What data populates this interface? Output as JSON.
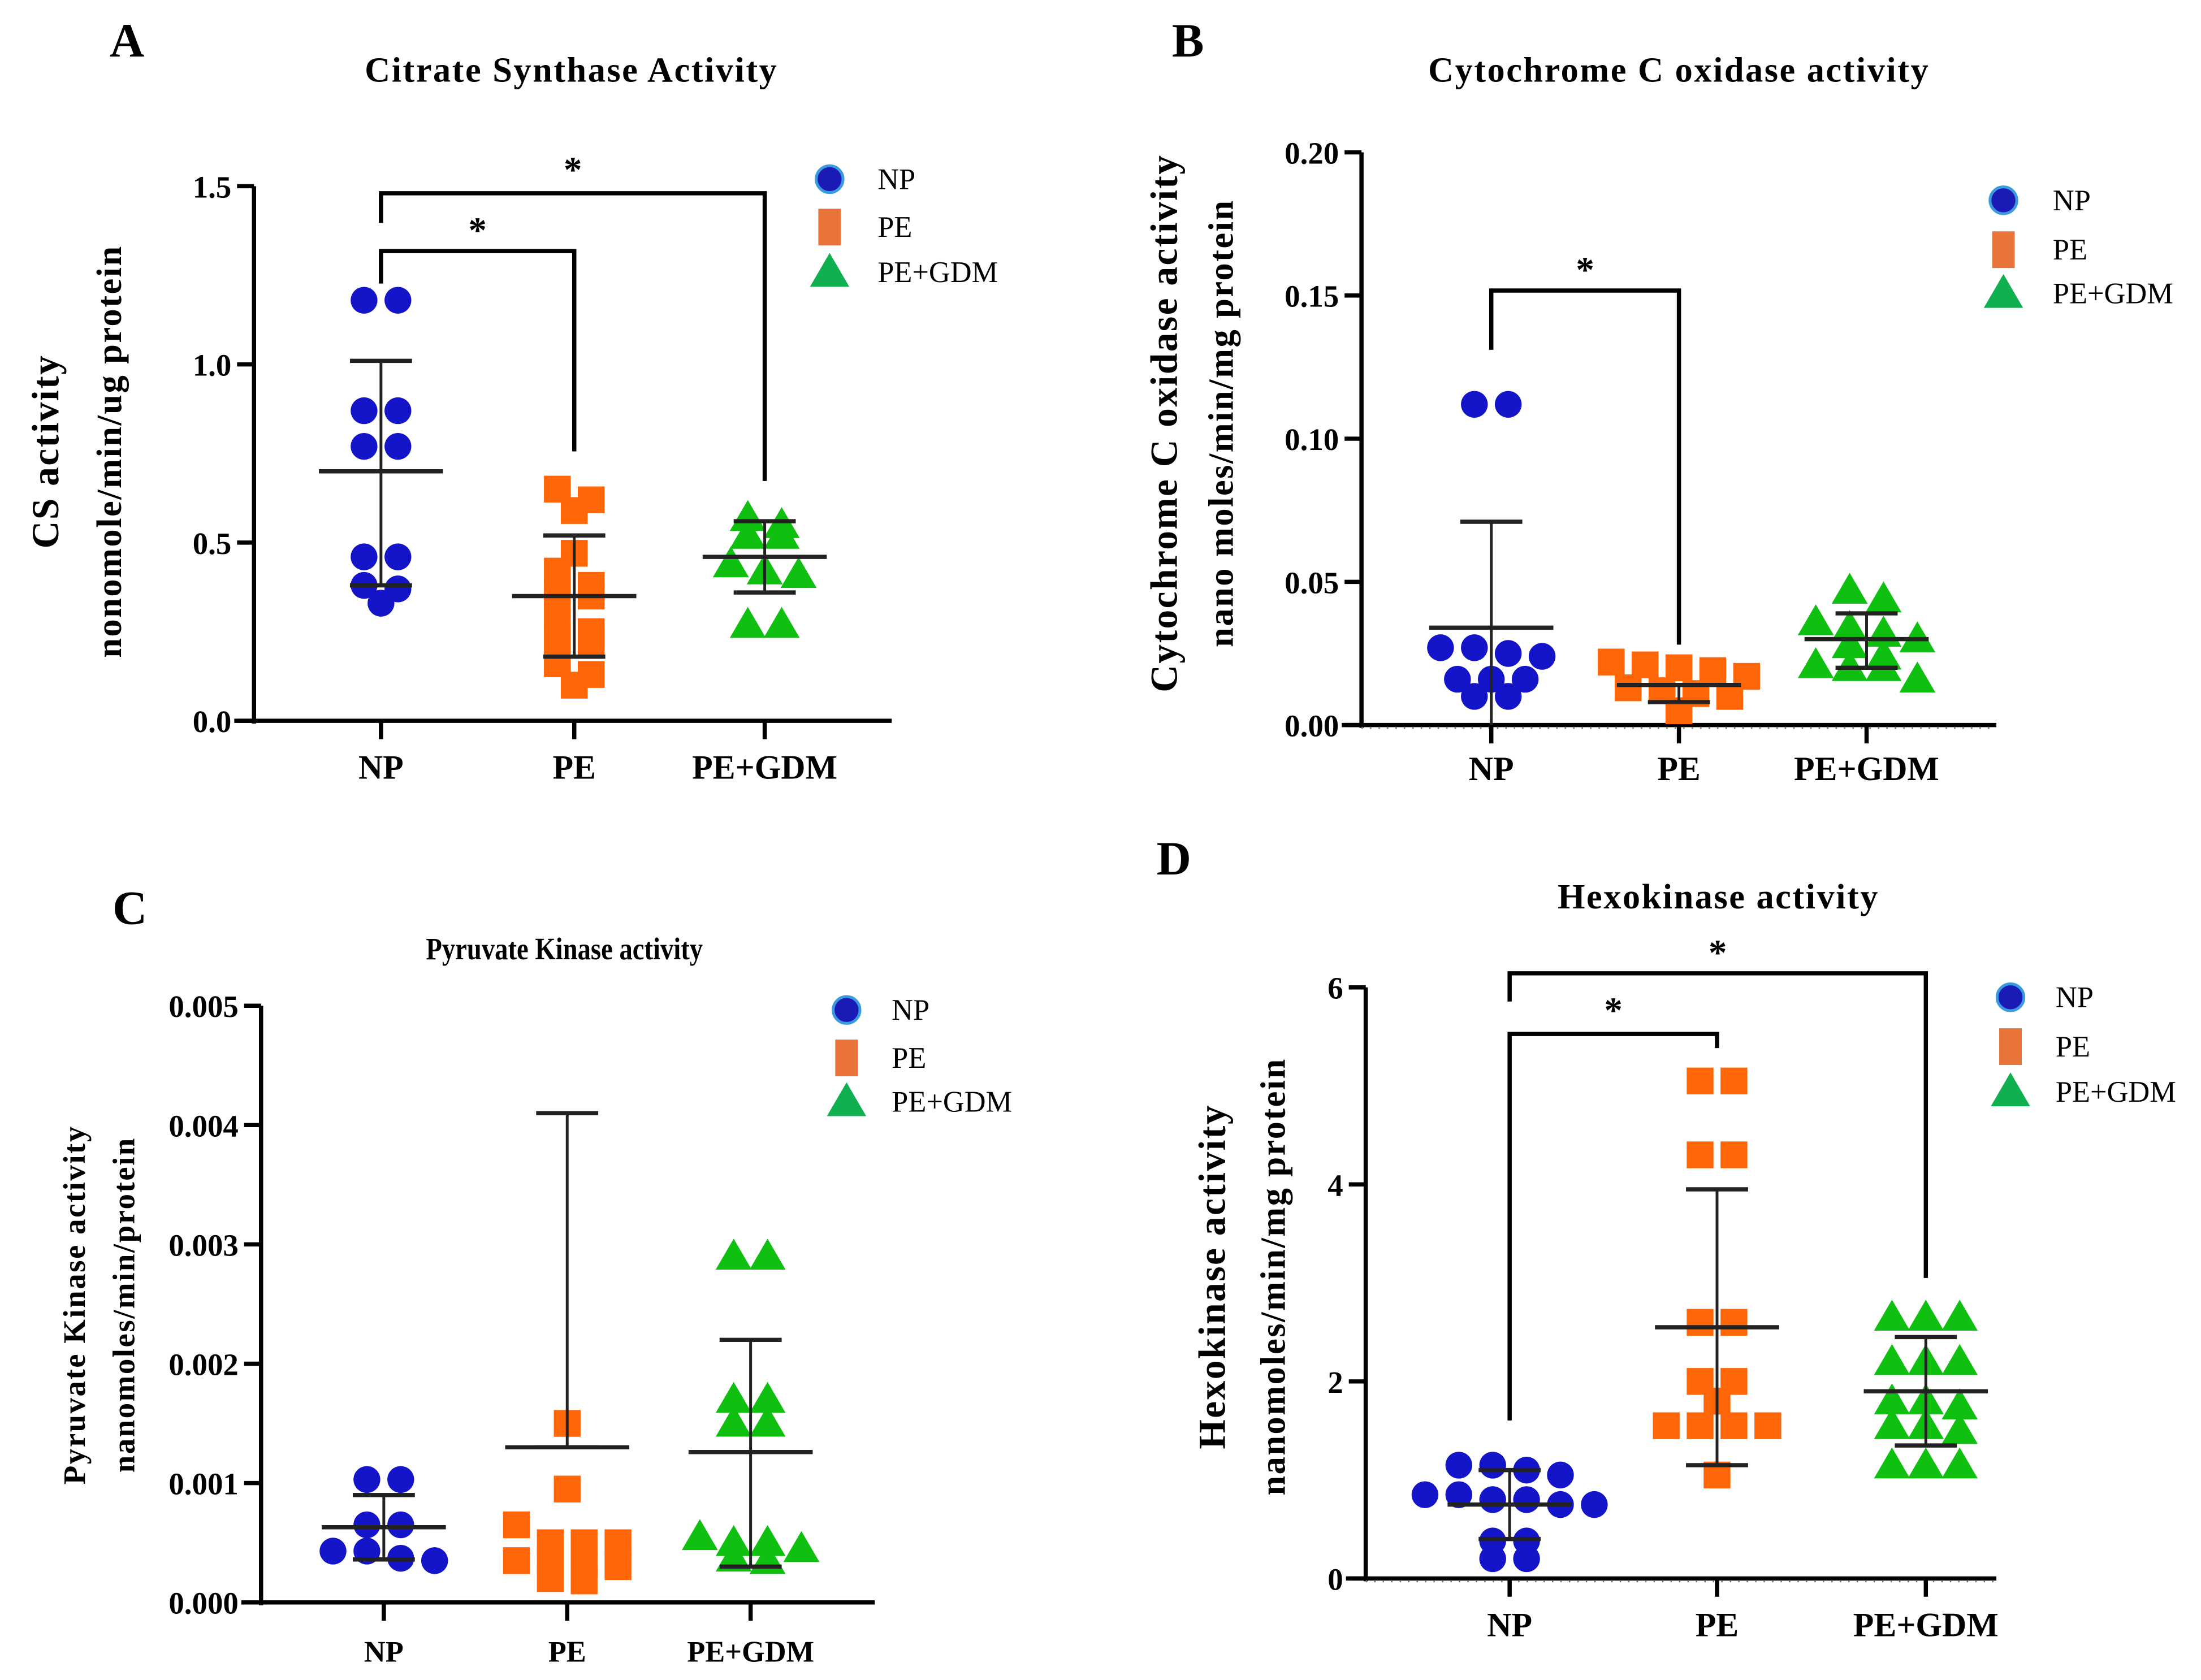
{
  "colors": {
    "NP": "#1414c8",
    "PE": "#ff6608",
    "PE+GDM": "#10c010",
    "legend_NP": "#1a1ab4",
    "legend_NP_ring": "#3a9ae0",
    "legend_PE": "#e8743a",
    "legend_GDM": "#10b050",
    "axis": "#000000"
  },
  "chart_data": [
    {
      "panel": "A",
      "type": "scatter",
      "title": "Citrate Synthase Activity",
      "ylabel": [
        "CS activity",
        "nonomole/min/ug protein"
      ],
      "categories": [
        "NP",
        "PE",
        "PE+GDM"
      ],
      "ylim": [
        0,
        1.5
      ],
      "yticks": [
        0.0,
        0.5,
        1.0,
        1.5
      ],
      "ytick_labels": [
        "0.0",
        "0.5",
        "1.0",
        "1.5"
      ],
      "legend": [
        "NP",
        "PE",
        "PE+GDM"
      ],
      "legend_position": "top-right",
      "series": [
        {
          "name": "NP",
          "values": [
            1.18,
            1.18,
            0.87,
            0.87,
            0.77,
            0.77,
            0.46,
            0.46,
            0.38,
            0.37,
            0.33
          ],
          "mean": 0.7,
          "sd": [
            0.38,
            1.01
          ]
        },
        {
          "name": "PE",
          "values": [
            0.65,
            0.62,
            0.59,
            0.47,
            0.42,
            0.38,
            0.36,
            0.35,
            0.29,
            0.25,
            0.23,
            0.22,
            0.16,
            0.13,
            0.1
          ],
          "mean": 0.35,
          "sd": [
            0.18,
            0.52
          ]
        },
        {
          "name": "PE+GDM",
          "values": [
            0.57,
            0.55,
            0.52,
            0.52,
            0.44,
            0.42,
            0.41,
            0.27,
            0.27
          ],
          "mean": 0.46,
          "sd": [
            0.36,
            0.56
          ]
        }
      ],
      "significance": [
        {
          "pair": [
            "NP",
            "PE"
          ],
          "label": "*"
        },
        {
          "pair": [
            "NP",
            "PE+GDM"
          ],
          "label": "*"
        }
      ]
    },
    {
      "panel": "B",
      "type": "scatter",
      "title": "Cytochrome C oxidase activity",
      "ylabel": [
        "Cytochrome C oxidase activity",
        "nano moles/min/mg protein"
      ],
      "categories": [
        "NP",
        "PE",
        "PE+GDM"
      ],
      "ylim": [
        0,
        0.2
      ],
      "yticks": [
        0,
        0.05,
        0.1,
        0.15,
        0.2
      ],
      "ytick_labels": [
        "0.00",
        "0.05",
        "0.10",
        "0.15",
        "0.20"
      ],
      "legend": [
        "NP",
        "PE",
        "PE+GDM"
      ],
      "legend_position": "top-right",
      "series": [
        {
          "name": "NP",
          "values": [
            0.112,
            0.112,
            0.027,
            0.027,
            0.025,
            0.024,
            0.016,
            0.016,
            0.016,
            0.01,
            0.01
          ],
          "mean": 0.034,
          "sd": [
            0.0,
            0.071
          ]
        },
        {
          "name": "PE",
          "values": [
            0.022,
            0.021,
            0.02,
            0.019,
            0.017,
            0.013,
            0.012,
            0.011,
            0.01,
            0.005
          ],
          "mean": 0.014,
          "sd": [
            0.008,
            0.014
          ]
        },
        {
          "name": "PE+GDM",
          "values": [
            0.047,
            0.044,
            0.036,
            0.034,
            0.032,
            0.03,
            0.028,
            0.024,
            0.021,
            0.02,
            0.02,
            0.016
          ],
          "mean": 0.03,
          "sd": [
            0.02,
            0.039
          ]
        }
      ],
      "significance": [
        {
          "pair": [
            "NP",
            "PE"
          ],
          "label": "*"
        }
      ]
    },
    {
      "panel": "C",
      "type": "scatter",
      "title": "Pyruvate Kinase activity",
      "ylabel": [
        "Pyruvate Kinase activity",
        "nanomoles/min/protein"
      ],
      "categories": [
        "NP",
        "PE",
        "PE+GDM"
      ],
      "ylim": [
        0,
        0.005
      ],
      "yticks": [
        0,
        0.001,
        0.002,
        0.003,
        0.004,
        0.005
      ],
      "ytick_labels": [
        "0.000",
        "0.001",
        "0.002",
        "0.003",
        "0.004",
        "0.005"
      ],
      "legend": [
        "NP",
        "PE",
        "PE+GDM"
      ],
      "legend_position": "top-right",
      "series": [
        {
          "name": "NP",
          "values": [
            0.00103,
            0.00103,
            0.00065,
            0.00065,
            0.00043,
            0.00043,
            0.00037,
            0.00035
          ],
          "mean": 0.00063,
          "sd": [
            0.00036,
            0.0009
          ]
        },
        {
          "name": "PE",
          "values": [
            0.0015,
            0.00095,
            0.00065,
            0.0005,
            0.0005,
            0.0005,
            0.00035,
            0.00035,
            0.0003,
            0.0003,
            0.0002,
            0.00018
          ],
          "mean": 0.0013,
          "sd": [
            0.0013,
            0.0041
          ]
        },
        {
          "name": "PE+GDM",
          "values": [
            0.0029,
            0.0029,
            0.0017,
            0.0017,
            0.0015,
            0.0015,
            0.00055,
            0.0005,
            0.0005,
            0.00045,
            0.00037,
            0.00035
          ],
          "mean": 0.00126,
          "sd": [
            0.0003,
            0.0022
          ]
        }
      ],
      "significance": []
    },
    {
      "panel": "D",
      "type": "scatter",
      "title": "Hexokinase activity",
      "ylabel": [
        "Hexokinase activity",
        "nanomoles/min/mg protein"
      ],
      "categories": [
        "NP",
        "PE",
        "PE+GDM"
      ],
      "ylim": [
        0,
        6
      ],
      "yticks": [
        0,
        2,
        4,
        6
      ],
      "ytick_labels": [
        "0",
        "2",
        "4",
        "6"
      ],
      "legend": [
        "NP",
        "PE",
        "PE+GDM"
      ],
      "legend_position": "top-right",
      "series": [
        {
          "name": "NP",
          "values": [
            1.15,
            1.15,
            1.1,
            1.05,
            0.85,
            0.85,
            0.8,
            0.8,
            0.75,
            0.75,
            0.38,
            0.38,
            0.2,
            0.2
          ],
          "mean": 0.75,
          "sd": [
            0.4,
            1.1
          ]
        },
        {
          "name": "PE",
          "values": [
            5.05,
            5.05,
            4.3,
            4.3,
            2.6,
            2.6,
            2.0,
            2.0,
            1.8,
            1.55,
            1.55,
            1.55,
            1.55,
            1.05
          ],
          "mean": 2.55,
          "sd": [
            1.15,
            3.95
          ]
        },
        {
          "name": "PE+GDM",
          "values": [
            2.65,
            2.65,
            2.65,
            2.2,
            2.2,
            2.2,
            1.8,
            1.8,
            1.75,
            1.55,
            1.55,
            1.5,
            1.15,
            1.15,
            1.15
          ],
          "mean": 1.9,
          "sd": [
            1.35,
            2.45
          ]
        }
      ],
      "significance": [
        {
          "pair": [
            "NP",
            "PE"
          ],
          "label": "*"
        },
        {
          "pair": [
            "NP",
            "PE+GDM"
          ],
          "label": "*"
        }
      ]
    }
  ]
}
